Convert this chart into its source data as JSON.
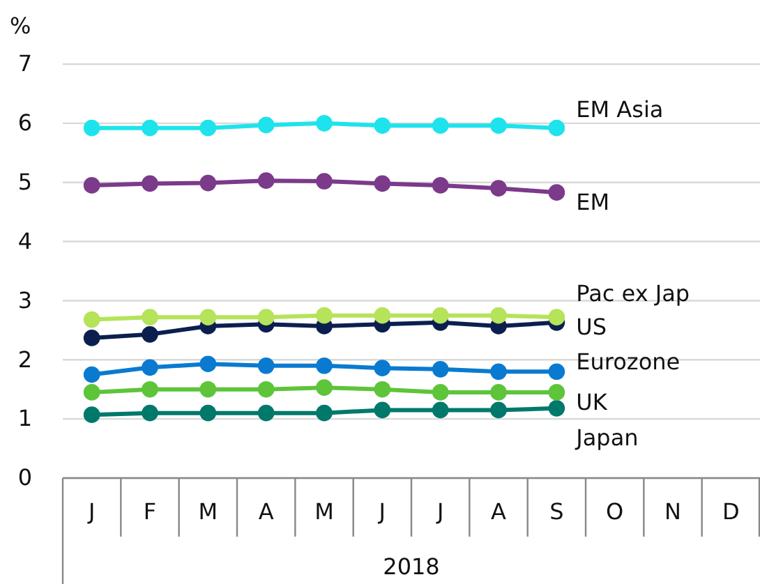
{
  "chart_data": {
    "type": "line",
    "ylabel": "%",
    "xlabel": "2018",
    "categories": [
      "J",
      "F",
      "M",
      "A",
      "M",
      "J",
      "J",
      "A",
      "S",
      "O",
      "N",
      "D"
    ],
    "ylim": [
      0,
      7
    ],
    "yticks": [
      0,
      1,
      2,
      3,
      4,
      5,
      6,
      7
    ],
    "grid": "y",
    "marker": "circle",
    "legend": false,
    "series": [
      {
        "name": "EM Asia",
        "color": "#1ee3ec",
        "values": [
          5.92,
          5.92,
          5.92,
          5.97,
          6.0,
          5.96,
          5.96,
          5.96,
          5.92,
          null,
          null,
          null
        ]
      },
      {
        "name": "EM",
        "color": "#7b3a8a",
        "values": [
          4.95,
          4.98,
          4.99,
          5.03,
          5.02,
          4.98,
          4.95,
          4.9,
          4.83,
          null,
          null,
          null
        ]
      },
      {
        "name": "Pac ex Jap",
        "color": "#b5e35a",
        "values": [
          2.68,
          2.72,
          2.72,
          2.72,
          2.75,
          2.75,
          2.75,
          2.75,
          2.72,
          null,
          null,
          null
        ]
      },
      {
        "name": "US",
        "color": "#0b1f4f",
        "values": [
          2.37,
          2.43,
          2.57,
          2.6,
          2.57,
          2.6,
          2.63,
          2.57,
          2.63,
          null,
          null,
          null
        ]
      },
      {
        "name": "Eurozone",
        "color": "#0a7ad0",
        "values": [
          1.75,
          1.87,
          1.93,
          1.9,
          1.9,
          1.86,
          1.84,
          1.8,
          1.8,
          null,
          null,
          null
        ]
      },
      {
        "name": "UK",
        "color": "#5ec43a",
        "values": [
          1.45,
          1.5,
          1.5,
          1.5,
          1.53,
          1.5,
          1.45,
          1.45,
          1.45,
          null,
          null,
          null
        ]
      },
      {
        "name": "Japan",
        "color": "#00796b",
        "values": [
          1.07,
          1.1,
          1.1,
          1.1,
          1.1,
          1.15,
          1.15,
          1.15,
          1.18,
          null,
          null,
          null
        ]
      }
    ]
  }
}
